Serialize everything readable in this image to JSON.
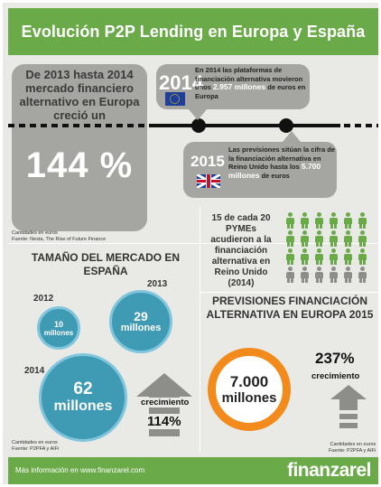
{
  "header": {
    "title": "Evolución P2P Lending en Europa y España"
  },
  "growth": {
    "text": "De 2013 hasta 2014 mercado financiero alternativo en Europa creció un",
    "value": "144 %"
  },
  "timeline_2014": {
    "year": "2014",
    "text_before": "En 2014 las plataformas de financiación alternativa movieron unos",
    "highlight": "2.957 millones",
    "text_after": "de euros en Europa"
  },
  "timeline_2015": {
    "year": "2015",
    "text_before": "Las previsiones sitúan la cifra de la financiación alternativa en Reino Unido hasta los",
    "highlight": "5.700 millones",
    "text_after": "de euros"
  },
  "source_1": {
    "line1": "Cantidades en euros",
    "line2": "Fuente: Nesta, The Rise of Future Finance"
  },
  "pymes": {
    "text": "15 de cada 20 PYMEs acudieron a la financiación alternativa en Reino Unido (2014)",
    "highlighted": 15,
    "total": 20
  },
  "market": {
    "title": "TAMAÑO DEL MERCADO EN ESPAÑA",
    "bubbles": [
      {
        "year": "2012",
        "value": "10",
        "unit": "millones"
      },
      {
        "year": "2013",
        "value": "29",
        "unit": "millones"
      },
      {
        "year": "2014",
        "value": "62",
        "unit": "millones"
      }
    ],
    "growth_label": "crecimiento",
    "growth_value": "114%"
  },
  "source_2": {
    "line1": "Cantidades en euros",
    "line2": "Fuente: P2PFA y AIFi"
  },
  "forecast": {
    "title": "PREVISIONES FINANCIACIÓN ALTERNATIVA EN EUROPA 2015",
    "value": "7.000",
    "unit": "millones",
    "pct": "237%",
    "pct_label": "crecimiento"
  },
  "source_3": {
    "line1": "Cantidades en euros",
    "line2": "Fuente: P2PFA y AIFi"
  },
  "footer": {
    "text": "Más información en www.finanzarel.com",
    "logo": "finanzarel"
  },
  "colors": {
    "green": "#6aaa48",
    "grey": "#a5a5a2",
    "blue": "#3f9ab4",
    "orange": "#f28a1c"
  }
}
